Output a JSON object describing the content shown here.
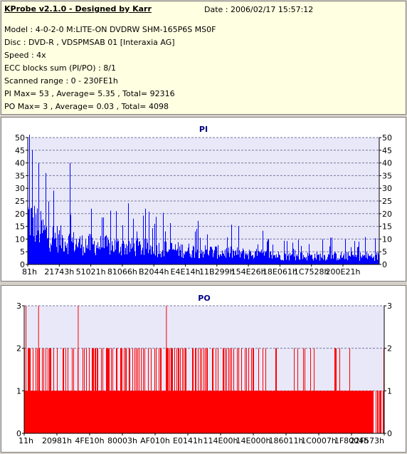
{
  "header": {
    "title": "KProbe v2.1.0 - Designed by Karr",
    "date": "Date : 2006/02/17 15:57:12",
    "lines": [
      "Model : 4-0-2-0 M:LITE-ON DVDRW SHM-165P6S MS0F",
      "Disc : DVD-R , VDSPMSAB 01 [Interaxia AG]",
      "Speed : 4x",
      "ECC blocks sum (PI/PO) : 8/1",
      "Scanned range : 0 - 230FE1h",
      "PI Max= 53 , Average= 5.35 , Total= 92316",
      "PO Max= 3 , Average= 0.03 , Total= 4098"
    ]
  },
  "colors": {
    "pi": "#0000ff",
    "po": "#ff0000",
    "plot_bg": "#e8e8f8",
    "title": "#000080"
  },
  "chart_data": [
    {
      "type": "bar",
      "title": "PI",
      "ylim": [
        0,
        50
      ],
      "yticks": [
        0,
        5,
        10,
        15,
        20,
        25,
        30,
        35,
        40,
        45,
        50
      ],
      "x_tick_labels": [
        "81h",
        "21743h",
        "51021h",
        "81066h",
        "B2044h",
        "E4E14h",
        "11B299h",
        "154E26h",
        "18E061h",
        "1C7528h",
        "200E21h"
      ],
      "max": 53,
      "average": 5.35,
      "profile": [
        [
          0.0,
          24
        ],
        [
          0.01,
          22
        ],
        [
          0.03,
          18
        ],
        [
          0.06,
          14
        ],
        [
          0.1,
          12
        ],
        [
          0.15,
          10
        ],
        [
          0.25,
          9
        ],
        [
          0.35,
          8
        ],
        [
          0.45,
          7
        ],
        [
          0.55,
          6
        ],
        [
          0.65,
          5
        ],
        [
          0.75,
          4
        ],
        [
          0.85,
          4
        ],
        [
          1.0,
          4
        ]
      ],
      "spikes": [
        [
          0.005,
          53
        ],
        [
          0.012,
          45
        ],
        [
          0.03,
          40
        ],
        [
          0.05,
          36
        ],
        [
          0.12,
          40
        ],
        [
          0.18,
          22
        ],
        [
          0.25,
          21
        ],
        [
          0.3,
          18
        ],
        [
          0.36,
          16
        ],
        [
          0.48,
          14
        ],
        [
          0.6,
          15
        ],
        [
          0.68,
          9
        ],
        [
          0.8,
          8
        ],
        [
          0.94,
          7
        ]
      ]
    },
    {
      "type": "bar",
      "title": "PO",
      "ylim": [
        0,
        3
      ],
      "yticks": [
        0,
        1,
        2,
        3
      ],
      "x_tick_labels": [
        "11h",
        "20981h",
        "4FE10h",
        "80003h",
        "AF010h",
        "E0141h",
        "114E00h",
        "14E000h",
        "186011h",
        "1C0007h",
        "1F8004h",
        "22F573h"
      ],
      "max": 3,
      "average": 0.03,
      "threes": [
        0.005,
        0.04,
        0.15,
        0.395
      ]
    }
  ]
}
